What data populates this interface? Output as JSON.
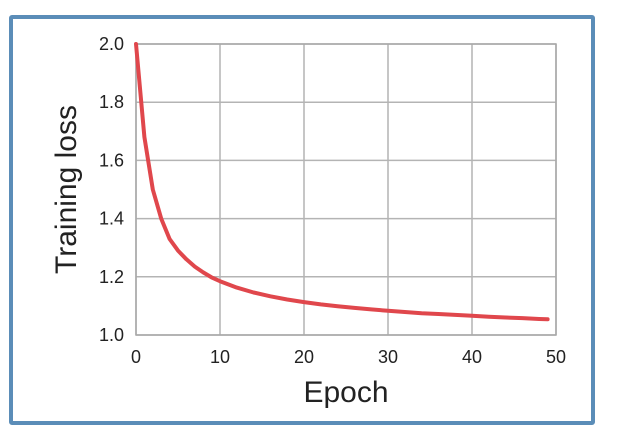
{
  "chart_data": {
    "type": "line",
    "xlabel": "Epoch",
    "ylabel": "Training loss",
    "xlim": [
      0,
      50
    ],
    "ylim": [
      1.0,
      2.0
    ],
    "xticks": [
      "0",
      "10",
      "20",
      "30",
      "40",
      "50"
    ],
    "yticks": [
      "1.0",
      "1.2",
      "1.4",
      "1.6",
      "1.8",
      "2.0"
    ],
    "grid": true,
    "series": [
      {
        "color": "#e0474c",
        "x": [
          0,
          1,
          2,
          3,
          4,
          5,
          6,
          7,
          8,
          9,
          10,
          12,
          14,
          16,
          18,
          20,
          22,
          24,
          26,
          28,
          30,
          32,
          34,
          36,
          38,
          40,
          42,
          44,
          46,
          48,
          49
        ],
        "y": [
          2.0,
          1.68,
          1.5,
          1.4,
          1.33,
          1.29,
          1.26,
          1.235,
          1.215,
          1.198,
          1.185,
          1.163,
          1.146,
          1.133,
          1.122,
          1.113,
          1.105,
          1.099,
          1.093,
          1.088,
          1.083,
          1.079,
          1.075,
          1.072,
          1.069,
          1.066,
          1.063,
          1.06,
          1.058,
          1.055,
          1.054
        ]
      }
    ]
  },
  "colors": {
    "frame_border": "#5b8db8",
    "grid": "#b4b4b4",
    "line": "#e0474c"
  }
}
